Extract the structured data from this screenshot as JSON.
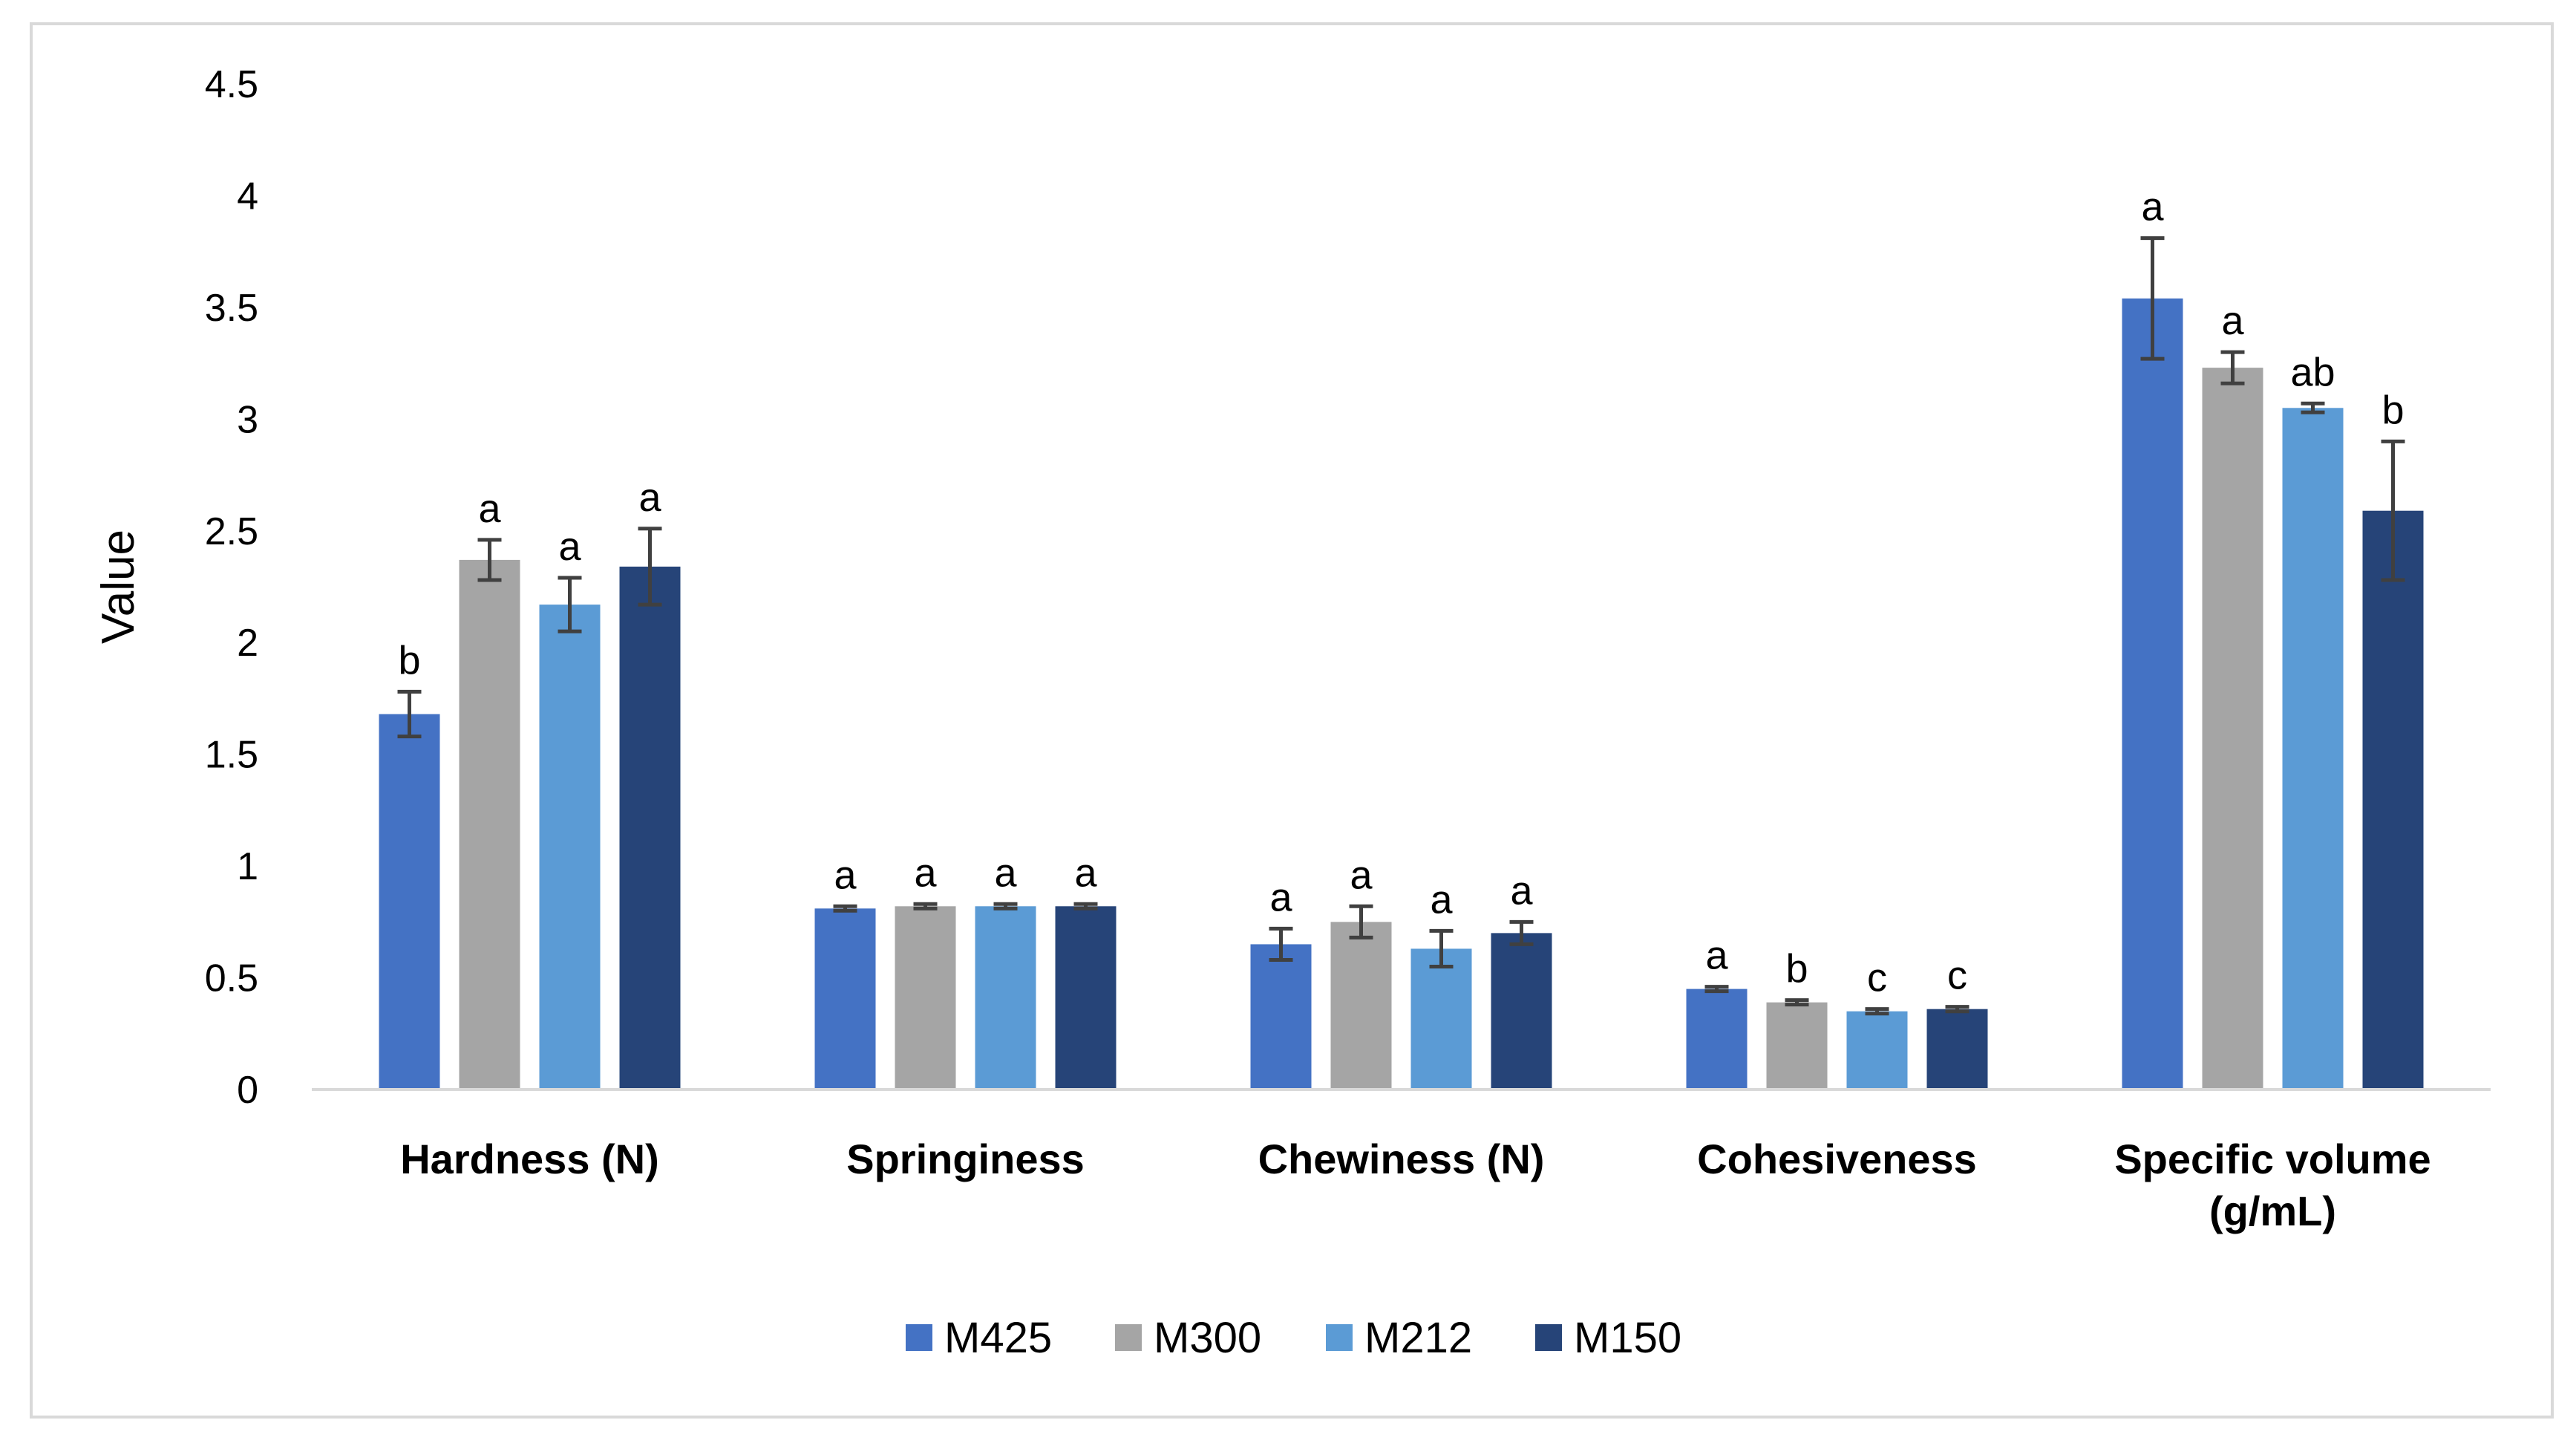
{
  "chart_data": {
    "type": "bar",
    "title": "",
    "xlabel": "",
    "ylabel": "Value",
    "ylim": [
      0,
      4.5
    ],
    "yticks": [
      "0",
      "0.5",
      "1",
      "1.5",
      "2",
      "2.5",
      "3",
      "3.5",
      "4",
      "4.5"
    ],
    "grid": false,
    "legend_position": "bottom",
    "categories": [
      [
        "Hardness (N)"
      ],
      [
        "Springiness"
      ],
      [
        "Chewiness (N)"
      ],
      [
        "Cohesiveness"
      ],
      [
        "Specific volume",
        "(g/mL)"
      ]
    ],
    "series": [
      {
        "name": "M425",
        "color": "#4472c4",
        "values": [
          1.68,
          0.81,
          0.65,
          0.45,
          3.54
        ],
        "errors": [
          0.1,
          0.01,
          0.07,
          0.01,
          0.27
        ],
        "labels": [
          "b",
          "a",
          "a",
          "a",
          "a"
        ]
      },
      {
        "name": "M300",
        "color": "#a5a5a5",
        "values": [
          2.37,
          0.82,
          0.75,
          0.39,
          3.23
        ],
        "errors": [
          0.09,
          0.01,
          0.07,
          0.01,
          0.07
        ],
        "labels": [
          "a",
          "a",
          "a",
          "b",
          "a"
        ]
      },
      {
        "name": "M212",
        "color": "#5b9bd5",
        "values": [
          2.17,
          0.82,
          0.63,
          0.35,
          3.05
        ],
        "errors": [
          0.12,
          0.01,
          0.08,
          0.01,
          0.02
        ],
        "labels": [
          "a",
          "a",
          "a",
          "c",
          "ab"
        ]
      },
      {
        "name": "M150",
        "color": "#264478",
        "values": [
          2.34,
          0.82,
          0.7,
          0.36,
          2.59
        ],
        "errors": [
          0.17,
          0.01,
          0.05,
          0.01,
          0.31
        ],
        "labels": [
          "a",
          "a",
          "a",
          "c",
          "b"
        ]
      }
    ]
  }
}
